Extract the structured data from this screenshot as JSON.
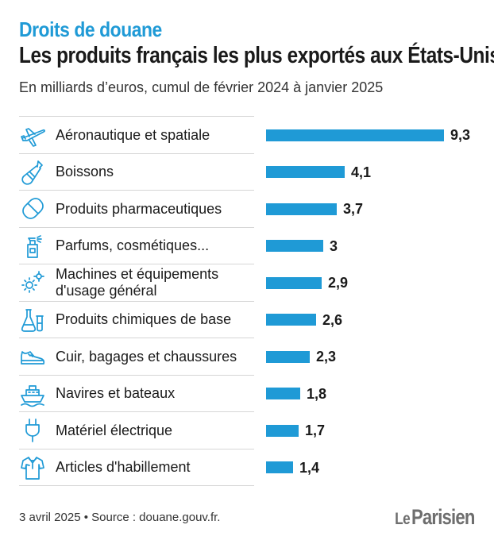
{
  "header": {
    "kicker": "Droits de douane",
    "title": "Les produits français les plus exportés aux États-Unis",
    "subtitle": "En milliards d’euros, cumul de février 2024 à janvier 2025"
  },
  "chart_data": {
    "type": "bar",
    "orientation": "horizontal",
    "title": "Les produits français les plus exportés aux États-Unis",
    "ylabel": "En milliards d’euros",
    "categories": [
      "Aéronautique et spatiale",
      "Boissons",
      "Produits pharmaceutiques",
      "Parfums, cosmétiques...",
      "Machines et équipements\nd'usage général",
      "Produits chimiques de base",
      "Cuir, bagages et chaussures",
      "Navires et bateaux",
      "Matériel électrique",
      "Articles d'habillement"
    ],
    "values": [
      9.3,
      4.1,
      3.7,
      3,
      2.9,
      2.6,
      2.3,
      1.8,
      1.7,
      1.4
    ],
    "value_labels": [
      "9,3",
      "4,1",
      "3,7",
      "3",
      "2,9",
      "2,6",
      "2,3",
      "1,8",
      "1,7",
      "1,4"
    ],
    "icons": [
      "airplane-icon",
      "bottle-icon",
      "pill-icon",
      "spray-icon",
      "gears-icon",
      "flasks-icon",
      "shoe-icon",
      "ship-icon",
      "plug-icon",
      "shirt-icon"
    ],
    "xlim": [
      0,
      9.3
    ],
    "grid": false,
    "legend": "none",
    "bar_color": "#1f9ad6"
  },
  "colors": {
    "accent": "#1f9ad6",
    "text": "#1a1a1a",
    "separator": "#d6d6d6",
    "logo": "#6e6e6e"
  },
  "footer": {
    "source": "3 avril 2025 • Source : douane.gouv.fr."
  },
  "logo": {
    "prefix": "Le",
    "name": "Parisien"
  }
}
